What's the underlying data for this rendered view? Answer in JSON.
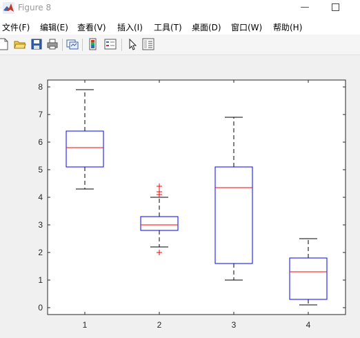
{
  "window": {
    "title": "Figure 8",
    "min_glyph": "—"
  },
  "menu": [
    {
      "id": "file",
      "label": "文件(F)"
    },
    {
      "id": "edit",
      "label": "编辑(E)"
    },
    {
      "id": "view",
      "label": "查看(V)"
    },
    {
      "id": "insert",
      "label": "插入(I)"
    },
    {
      "id": "tools",
      "label": "工具(T)"
    },
    {
      "id": "desktop",
      "label": "桌面(D)"
    },
    {
      "id": "window",
      "label": "窗口(W)"
    },
    {
      "id": "help",
      "label": "帮助(H)"
    }
  ],
  "toolbar": {
    "icons": [
      "new-figure-icon",
      "open-file-icon",
      "save-icon",
      "print-icon",
      "link-plot-icon",
      "colorbar-icon",
      "legend-icon",
      "pointer-icon",
      "property-inspector-icon"
    ]
  },
  "colors": {
    "box": "#0000ff",
    "median": "#ff0000",
    "whisker": "#000000",
    "outlier": "#ff0000"
  },
  "chart_data": {
    "type": "boxplot",
    "categories": [
      "1",
      "2",
      "3",
      "4"
    ],
    "xticks": [
      "1",
      "2",
      "3",
      "4"
    ],
    "yticks": [
      "0",
      "1",
      "2",
      "3",
      "4",
      "5",
      "6",
      "7",
      "8"
    ],
    "ylim": [
      -0.25,
      8.25
    ],
    "grid": false,
    "boxes": [
      {
        "label": "1",
        "min": 4.3,
        "q1": 5.1,
        "median": 5.8,
        "q3": 6.4,
        "max": 7.9,
        "outliers": []
      },
      {
        "label": "2",
        "min": 2.2,
        "q1": 2.8,
        "median": 3.0,
        "q3": 3.3,
        "max": 4.0,
        "outliers": [
          2.0,
          4.1,
          4.2,
          4.4
        ]
      },
      {
        "label": "3",
        "min": 1.0,
        "q1": 1.6,
        "median": 4.35,
        "q3": 5.1,
        "max": 6.9,
        "outliers": []
      },
      {
        "label": "4",
        "min": 0.1,
        "q1": 0.3,
        "median": 1.3,
        "q3": 1.8,
        "max": 2.5,
        "outliers": []
      }
    ]
  }
}
